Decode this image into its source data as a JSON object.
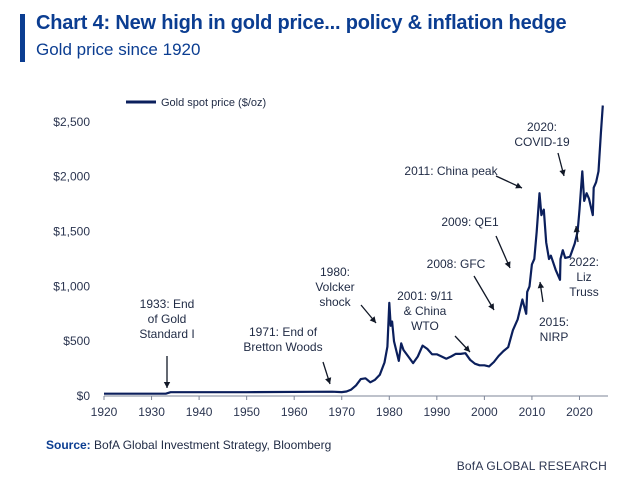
{
  "header": {
    "title": "Chart 4: New high in gold price... policy & inflation hedge",
    "subtitle": "Gold price since 1920"
  },
  "chart_data": {
    "type": "line",
    "title": "Chart 4: New high in gold price... policy & inflation hedge",
    "subtitle": "Gold price since 1920",
    "xlabel": "",
    "ylabel": "",
    "xlim": [
      1920,
      2026
    ],
    "ylim": [
      0,
      2700
    ],
    "xticks": [
      1920,
      1930,
      1940,
      1950,
      1960,
      1970,
      1980,
      1990,
      2000,
      2010,
      2020
    ],
    "yticks": [
      0,
      500,
      1000,
      1500,
      2000,
      2500
    ],
    "ytick_labels": [
      "$0",
      "$500",
      "$1,000",
      "$1,500",
      "$2,000",
      "$2,500"
    ],
    "grid": false,
    "legend_position": "top-left",
    "series": [
      {
        "name": "Gold spot price ($/oz)",
        "color": "#0b1f5c",
        "x": [
          1920,
          1933,
          1934,
          1950,
          1968,
          1970,
          1971,
          1972,
          1973,
          1974,
          1975,
          1976,
          1977,
          1978,
          1979,
          1979.6,
          1980,
          1980.3,
          1980.6,
          1981,
          1982,
          1982.5,
          1983,
          1984,
          1985,
          1986,
          1987,
          1988,
          1989,
          1990,
          1991,
          1992,
          1993,
          1994,
          1995,
          1996,
          1997,
          1998,
          1999,
          2000,
          2001,
          2002,
          2003,
          2004,
          2005,
          2006,
          2007,
          2008,
          2008.8,
          2009,
          2009.5,
          2010,
          2010.5,
          2011,
          2011.6,
          2012,
          2012.5,
          2013,
          2013.6,
          2014,
          2015,
          2015.9,
          2016,
          2016.5,
          2017,
          2018,
          2019,
          2019.6,
          2020,
          2020.6,
          2021,
          2021.5,
          2022,
          2022.8,
          2023,
          2023.5,
          2024,
          2024.5,
          2024.9
        ],
        "values": [
          20.67,
          20.67,
          35,
          35,
          39,
          36,
          41,
          58,
          97,
          154,
          161,
          125,
          148,
          193,
          306,
          450,
          850,
          640,
          680,
          500,
          320,
          480,
          420,
          360,
          300,
          360,
          460,
          430,
          380,
          380,
          360,
          340,
          360,
          385,
          384,
          390,
          330,
          295,
          280,
          280,
          270,
          310,
          365,
          410,
          445,
          600,
          700,
          880,
          750,
          950,
          1000,
          1200,
          1250,
          1500,
          1850,
          1650,
          1700,
          1400,
          1250,
          1280,
          1150,
          1060,
          1250,
          1330,
          1260,
          1270,
          1390,
          1500,
          1700,
          2050,
          1780,
          1850,
          1800,
          1650,
          1900,
          1950,
          2050,
          2400,
          2650
        ]
      }
    ],
    "annotations": [
      {
        "text": "1933: End of Gold Standard I",
        "year": 1933
      },
      {
        "text": "1971: End of Bretton Woods",
        "year": 1971
      },
      {
        "text": "1980: Volcker shock",
        "year": 1980
      },
      {
        "text": "2001: 9/11 & China WTO",
        "year": 2001
      },
      {
        "text": "2008: GFC",
        "year": 2008
      },
      {
        "text": "2009: QE1",
        "year": 2009
      },
      {
        "text": "2011: China peak",
        "year": 2011
      },
      {
        "text": "2015: NIRP",
        "year": 2015
      },
      {
        "text": "2020: COVID-19",
        "year": 2020
      },
      {
        "text": "2022: Liz Truss",
        "year": 2022
      }
    ]
  },
  "annotations_text": {
    "a1933": [
      "1933: End",
      "of Gold",
      "Standard I"
    ],
    "a1971": [
      "1971: End of",
      "Bretton Woods"
    ],
    "a1980": [
      "1980:",
      "Volcker",
      "shock"
    ],
    "a2001": [
      "2001: 9/11",
      "& China",
      "WTO"
    ],
    "a2008": [
      "2008: GFC"
    ],
    "a2009": [
      "2009: QE1"
    ],
    "a2011": [
      "2011: China peak"
    ],
    "a2015": [
      "2015:",
      "NIRP"
    ],
    "a2020": [
      "2020:",
      "COVID-19"
    ],
    "a2022": [
      "2022:",
      "Liz",
      "Truss"
    ]
  },
  "footer": {
    "source_label": "Source:",
    "source_text": " BofA Global Investment Strategy, Bloomberg",
    "branding": "BofA GLOBAL RESEARCH"
  }
}
